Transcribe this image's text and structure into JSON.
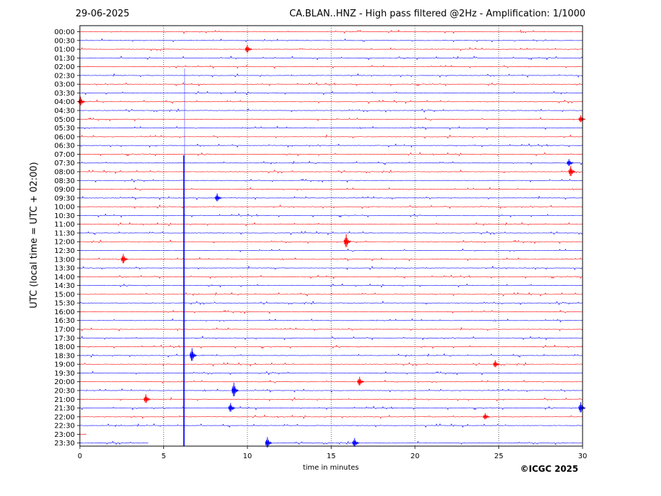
{
  "header": {
    "date": "29-06-2025",
    "title": "CA.BLAN..HNZ - High pass filtered @2Hz - Amplification: 1/1000"
  },
  "footer": {
    "copyright": "©ICGC 2025"
  },
  "chart_data": {
    "type": "line",
    "title": "CA.BLAN..HNZ - High pass filtered @2Hz - Amplification: 1/1000",
    "xlabel": "time in minutes",
    "ylabel": "UTC (local time = UTC + 02:00)",
    "xlim": [
      0,
      30
    ],
    "x_ticks": [
      0,
      5,
      10,
      15,
      20,
      25,
      30
    ],
    "grid": "vertical dotted",
    "trace_colors": [
      "#ff0000",
      "#0000ff"
    ],
    "rows": [
      "00:00",
      "00:30",
      "01:00",
      "01:30",
      "02:00",
      "02:30",
      "03:00",
      "03:30",
      "04:00",
      "04:30",
      "05:00",
      "05:30",
      "06:00",
      "06:30",
      "07:00",
      "07:30",
      "08:00",
      "08:30",
      "09:00",
      "09:30",
      "10:00",
      "10:30",
      "11:00",
      "11:30",
      "12:00",
      "12:30",
      "13:00",
      "13:30",
      "14:00",
      "14:30",
      "15:00",
      "15:30",
      "16:00",
      "16:30",
      "17:00",
      "17:30",
      "18:00",
      "18:30",
      "19:00",
      "19:30",
      "20:00",
      "20:30",
      "21:00",
      "21:30",
      "22:00",
      "22:30",
      "23:00",
      "23:30"
    ],
    "row_colors": [
      "#ff0000",
      "#0000ff",
      "#ff0000",
      "#0000ff",
      "#ff0000",
      "#0000ff",
      "#ff0000",
      "#0000ff",
      "#ff0000",
      "#0000ff",
      "#ff0000",
      "#0000ff",
      "#ff0000",
      "#0000ff",
      "#ff0000",
      "#0000ff",
      "#ff0000",
      "#0000ff",
      "#ff0000",
      "#0000ff",
      "#ff0000",
      "#0000ff",
      "#ff0000",
      "#0000ff",
      "#ff0000",
      "#0000ff",
      "#ff0000",
      "#0000ff",
      "#ff0000",
      "#0000ff",
      "#ff0000",
      "#0000ff",
      "#ff0000",
      "#0000ff",
      "#ff0000",
      "#0000ff",
      "#ff0000",
      "#0000ff",
      "#ff0000",
      "#0000ff",
      "#ff0000",
      "#0000ff",
      "#ff0000",
      "#0000ff",
      "#ff0000",
      "#0000ff",
      "#ff0000",
      "#0000ff"
    ],
    "trace_end_minutes": {
      "23:00": 0.4,
      "23:30": 4.1
    },
    "gap_row": "23:30",
    "gap_minutes": [
      4.1,
      11.2
    ],
    "transients": [
      {
        "start_row": "02:00",
        "minute": 6.25,
        "end_row": "23:30",
        "color": "#0000ff"
      },
      {
        "start_row": "07:00",
        "minute": 6.2,
        "end_row": "23:30",
        "color": "#0000ff"
      }
    ],
    "events": [
      {
        "row": "01:00",
        "minute": 10.0,
        "amp": 0.9
      },
      {
        "row": "04:00",
        "minute": 0.05,
        "amp": 1.0
      },
      {
        "row": "05:00",
        "minute": 29.9,
        "amp": 0.8
      },
      {
        "row": "07:30",
        "minute": 29.2,
        "amp": 0.8
      },
      {
        "row": "08:00",
        "minute": 29.3,
        "amp": 1.2
      },
      {
        "row": "09:30",
        "minute": 8.2,
        "amp": 0.9
      },
      {
        "row": "12:00",
        "minute": 15.9,
        "amp": 1.5
      },
      {
        "row": "13:00",
        "minute": 2.6,
        "amp": 1.1
      },
      {
        "row": "18:30",
        "minute": 6.7,
        "amp": 1.5
      },
      {
        "row": "19:00",
        "minute": 24.8,
        "amp": 0.8
      },
      {
        "row": "20:00",
        "minute": 16.7,
        "amp": 1.0
      },
      {
        "row": "20:30",
        "minute": 9.2,
        "amp": 1.6
      },
      {
        "row": "21:00",
        "minute": 3.95,
        "amp": 1.0
      },
      {
        "row": "21:30",
        "minute": 9.0,
        "amp": 1.0
      },
      {
        "row": "21:30",
        "minute": 29.9,
        "amp": 1.2
      },
      {
        "row": "22:00",
        "minute": 24.2,
        "amp": 0.7
      },
      {
        "row": "23:30",
        "minute": 11.2,
        "amp": 1.2
      },
      {
        "row": "23:30",
        "minute": 16.4,
        "amp": 1.0
      }
    ]
  }
}
